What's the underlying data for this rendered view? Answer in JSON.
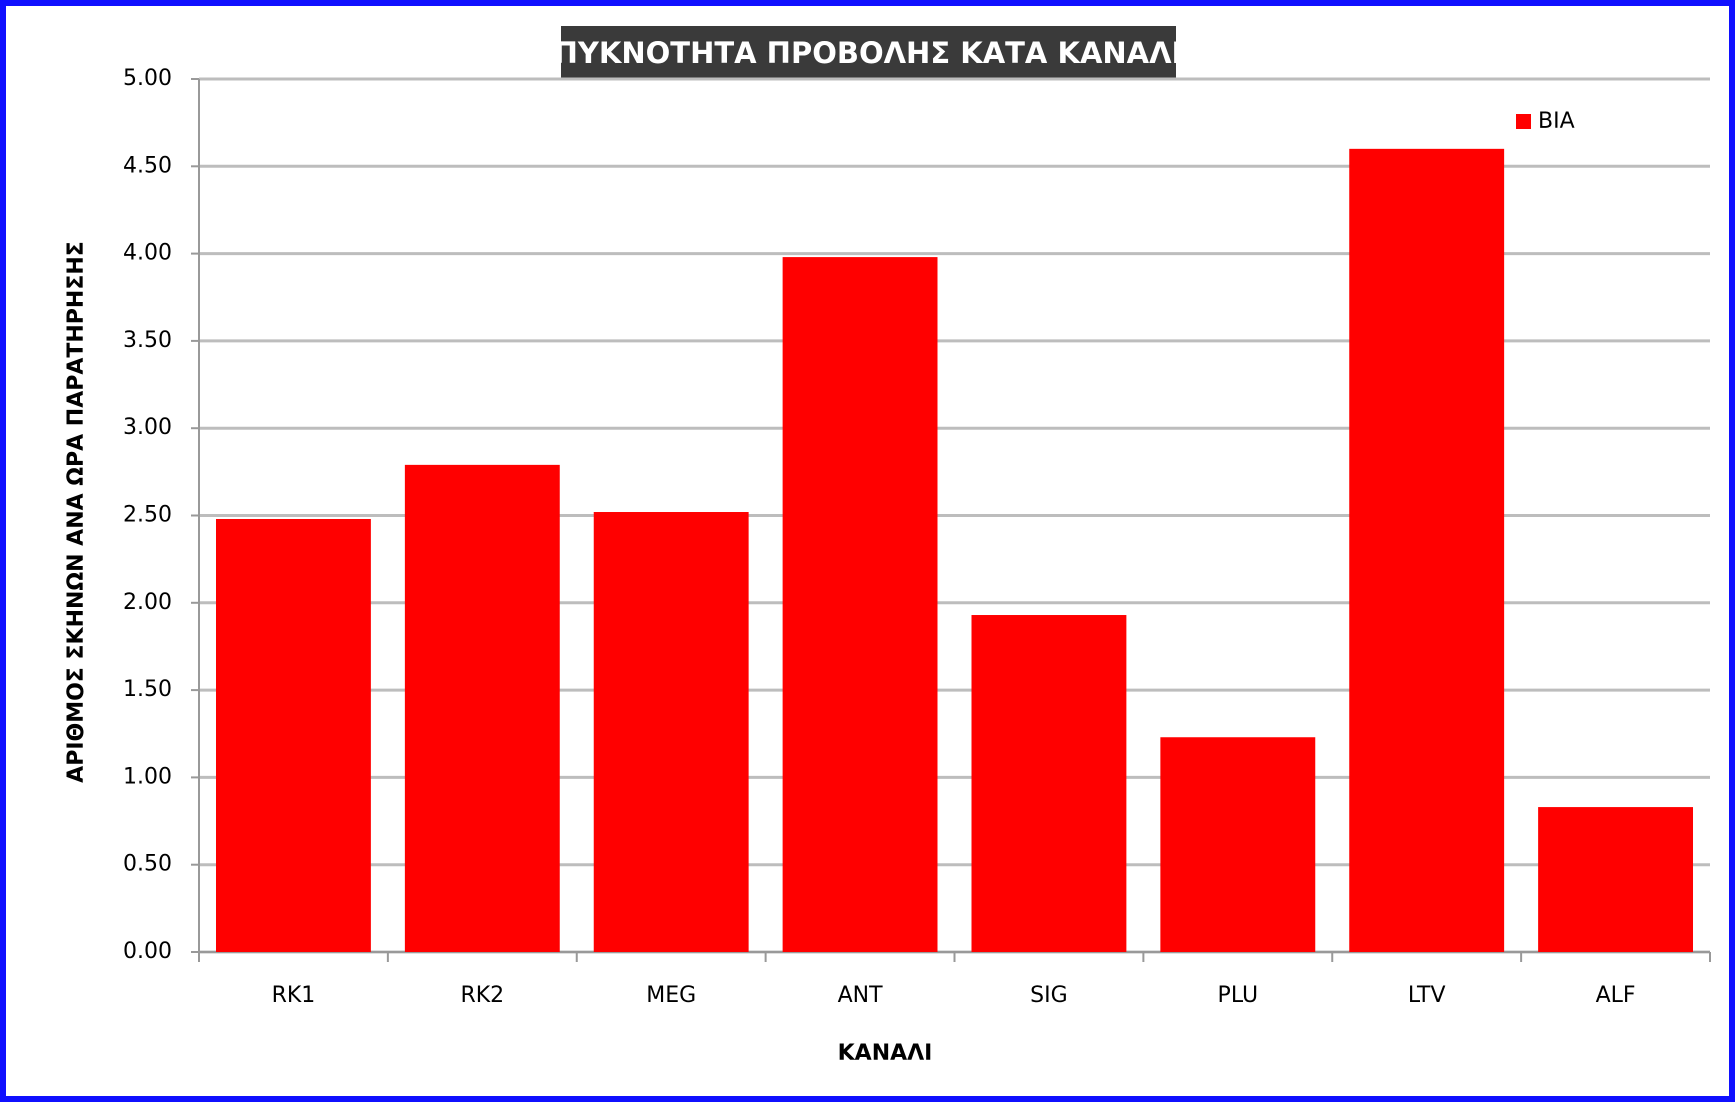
{
  "chart_data": {
    "type": "bar",
    "title": "ΠΥΚΝΟΤΗΤΑ ΠΡΟΒΟΛΗΣ ΚΑΤΑ ΚΑΝΑΛΙ",
    "x_label": "ΚΑΝΑΛΙ",
    "y_label": "ΑΡΙΘΜΟΣ ΣΚΗΝΩΝ ΑΝΑ ΩΡΑ ΠΑΡΑΤΗΡΗΣΗΣ",
    "categories": [
      "RK1",
      "RK2",
      "MEG",
      "ANT",
      "SIG",
      "PLU",
      "LTV",
      "ALF"
    ],
    "series": [
      {
        "name": "ΒΙΑ",
        "color": "#ff0000",
        "values": [
          2.48,
          2.79,
          2.52,
          3.98,
          1.93,
          1.23,
          4.6,
          0.83
        ]
      }
    ],
    "ylim": [
      0,
      5
    ],
    "yticks": [
      {
        "value": 0,
        "label": "0.00"
      },
      {
        "value": 0.5,
        "label": "0.50"
      },
      {
        "value": 1,
        "label": "1.00"
      },
      {
        "value": 1.5,
        "label": "1.50"
      },
      {
        "value": 2,
        "label": "2.00"
      },
      {
        "value": 2.5,
        "label": "2.50"
      },
      {
        "value": 3,
        "label": "3.00"
      },
      {
        "value": 3.5,
        "label": "3.50"
      },
      {
        "value": 4,
        "label": "4.00"
      },
      {
        "value": 4.5,
        "label": "4.50"
      },
      {
        "value": 5,
        "label": "5.00"
      }
    ],
    "grid": true,
    "legend": "top-right"
  }
}
